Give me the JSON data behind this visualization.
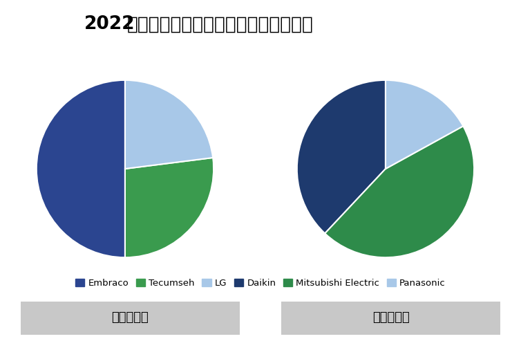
{
  "title_bold": "2022",
  "title_rest": "年全球冰箱和空调压缩机主要厂商分析",
  "pie1": {
    "label": "冰箱压缩机",
    "slices": [
      {
        "name": "Embraco",
        "value": 50,
        "color": "#2B4590"
      },
      {
        "name": "Tecumseh",
        "value": 27,
        "color": "#3A9B4E"
      },
      {
        "name": "LG",
        "value": 23,
        "color": "#A8C8E8"
      }
    ],
    "startangle": 90
  },
  "pie2": {
    "label": "空调压缩机",
    "slices": [
      {
        "name": "Daikin",
        "value": 38,
        "color": "#1E3A6E"
      },
      {
        "name": "Mitsubishi Electric",
        "value": 45,
        "color": "#2E8B4A"
      },
      {
        "name": "Panasonic",
        "value": 17,
        "color": "#A8C8E8"
      }
    ],
    "startangle": 90
  },
  "legend_items": [
    {
      "label": "Embraco",
      "color": "#2B4590"
    },
    {
      "label": "Tecumseh",
      "color": "#3A9B4E"
    },
    {
      "label": "LG",
      "color": "#A8C8E8"
    },
    {
      "label": "Daikin",
      "color": "#1E3A6E"
    },
    {
      "label": "Mitsubishi Electric",
      "color": "#2E8B4A"
    },
    {
      "label": "Panasonic",
      "color": "#A8C8E8"
    }
  ],
  "background_color": "#FFFFFF",
  "label_box_color": "#C8C8C8",
  "figsize": [
    7.54,
    4.93
  ],
  "dpi": 100
}
